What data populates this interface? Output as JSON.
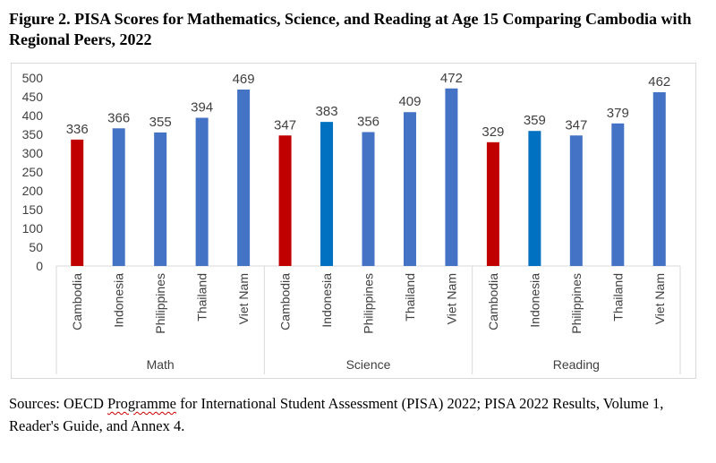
{
  "figure": {
    "title": "Figure 2. PISA Scores for Mathematics, Science, and Reading at Age 15 Comparing Cambodia with Regional Peers, 2022"
  },
  "source": {
    "prefix": "Sources: OECD ",
    "squiggle_word": "Programme",
    "rest": " for International Student Assessment (PISA) 2022; PISA 2022 Results, Volume 1, Reader's Guide, and Annex 4."
  },
  "colors": {
    "cambodia": "#c00000",
    "peers": "#4472c4",
    "indonesia_science_reading": "#0070c0",
    "axis_text": "#404040",
    "gridline": "#d9d9d9"
  },
  "chart_data": {
    "type": "bar",
    "title": "",
    "xlabel": "",
    "ylabel": "",
    "ylim": [
      0,
      500
    ],
    "yticks": [
      0,
      50,
      100,
      150,
      200,
      250,
      300,
      350,
      400,
      450,
      500
    ],
    "grid": false,
    "legend": "none",
    "groups": [
      {
        "name": "Math",
        "categories": [
          "Cambodia",
          "Indonesia",
          "Philippines",
          "Thailand",
          "Viet Nam"
        ],
        "values": [
          336,
          366,
          355,
          394,
          469
        ]
      },
      {
        "name": "Science",
        "categories": [
          "Cambodia",
          "Indonesia",
          "Philippines",
          "Thailand",
          "Viet Nam"
        ],
        "values": [
          347,
          383,
          356,
          409,
          472
        ]
      },
      {
        "name": "Reading",
        "categories": [
          "Cambodia",
          "Indonesia",
          "Philippines",
          "Thailand",
          "Viet Nam"
        ],
        "values": [
          329,
          359,
          347,
          379,
          462
        ]
      }
    ]
  }
}
